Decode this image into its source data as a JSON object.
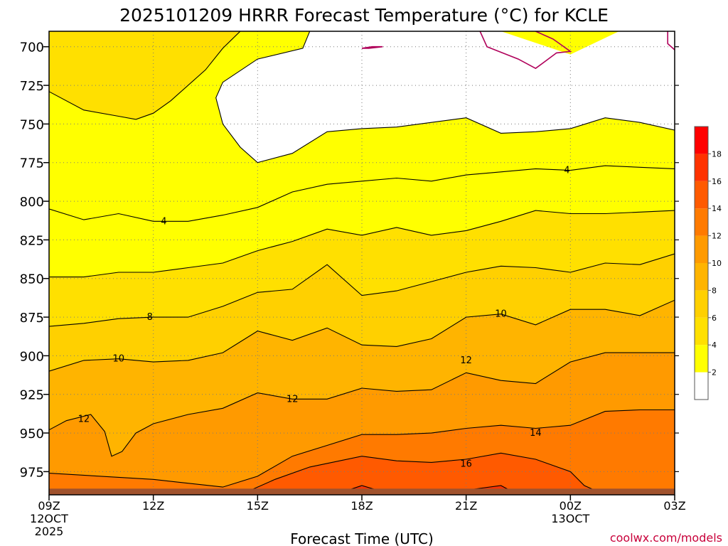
{
  "chart_data": {
    "type": "contour",
    "title": "2025101209 HRRR Forecast Temperature (°C) for KCLE",
    "xlabel": "Forecast Time (UTC)",
    "ylabel": "",
    "x": {
      "range": [
        0,
        18
      ],
      "ticks": [
        {
          "value": 0,
          "label": "09Z",
          "sub1": "12OCT",
          "sub2": "2025"
        },
        {
          "value": 3,
          "label": "12Z",
          "sub1": "",
          "sub2": ""
        },
        {
          "value": 6,
          "label": "15Z",
          "sub1": "",
          "sub2": ""
        },
        {
          "value": 9,
          "label": "18Z",
          "sub1": "",
          "sub2": ""
        },
        {
          "value": 12,
          "label": "21Z",
          "sub1": "",
          "sub2": ""
        },
        {
          "value": 15,
          "label": "00Z",
          "sub1": "13OCT",
          "sub2": ""
        },
        {
          "value": 18,
          "label": "03Z",
          "sub1": "",
          "sub2": ""
        }
      ]
    },
    "y": {
      "range": [
        690,
        990
      ],
      "inverted": true,
      "ticks": [
        700,
        725,
        750,
        775,
        800,
        825,
        850,
        875,
        900,
        925,
        950,
        975
      ]
    },
    "surface_pressure": 986,
    "grid": true,
    "colorbar": {
      "levels": [
        2,
        4,
        6,
        8,
        10,
        12,
        14,
        16,
        18,
        20
      ],
      "labels": [
        "2",
        "4",
        "6",
        "8",
        "10",
        "12",
        "14",
        "16",
        "18"
      ],
      "colors": [
        "#ffffff",
        "#ffff00",
        "#ffe000",
        "#ffd000",
        "#ffb400",
        "#ff9a00",
        "#ff7a00",
        "#ff5a00",
        "#ff3200",
        "#ff0000"
      ],
      "placement": "right"
    },
    "contour_labels": [
      {
        "value": "4",
        "x": 3.3,
        "y": 813
      },
      {
        "value": "4",
        "x": 14.9,
        "y": 780
      },
      {
        "value": "8",
        "x": 2.9,
        "y": 875
      },
      {
        "value": "10",
        "x": 2.0,
        "y": 902
      },
      {
        "value": "10",
        "x": 13.0,
        "y": 873
      },
      {
        "value": "12",
        "x": 1.0,
        "y": 941
      },
      {
        "value": "12",
        "x": 7.0,
        "y": 928
      },
      {
        "value": "12",
        "x": 12.0,
        "y": 903
      },
      {
        "value": "14",
        "x": 14.0,
        "y": 950
      },
      {
        "value": "16",
        "x": 12.0,
        "y": 970
      }
    ],
    "contours": [
      {
        "level": 2,
        "closed": true,
        "points": [
          [
            0,
            690
          ],
          [
            7.5,
            690
          ],
          [
            7.3,
            701
          ],
          [
            6.0,
            708
          ],
          [
            5.0,
            723
          ],
          [
            4.8,
            733
          ],
          [
            5.0,
            750
          ],
          [
            5.5,
            765
          ],
          [
            6.0,
            775
          ],
          [
            7.0,
            769
          ],
          [
            8.0,
            755
          ],
          [
            9.0,
            753
          ],
          [
            10.0,
            752
          ],
          [
            11.0,
            749
          ],
          [
            12.0,
            746
          ],
          [
            13.0,
            756
          ],
          [
            14.0,
            755
          ],
          [
            15.0,
            753
          ],
          [
            16.0,
            746
          ],
          [
            17.0,
            749
          ],
          [
            18.0,
            754
          ],
          [
            18,
            690
          ],
          [
            16.4,
            690
          ],
          [
            15.0,
            705
          ],
          [
            13.0,
            690
          ],
          [
            7.5,
            690
          ]
        ]
      },
      {
        "level": 4,
        "closed": true,
        "points": [
          [
            0,
            690
          ],
          [
            0,
            729
          ],
          [
            1.0,
            741
          ],
          [
            2.0,
            745
          ],
          [
            2.5,
            747
          ],
          [
            3.0,
            743
          ],
          [
            3.5,
            735
          ],
          [
            4.5,
            715
          ],
          [
            5.0,
            701
          ],
          [
            5.5,
            690
          ]
        ]
      },
      {
        "level": 4,
        "closed": true,
        "points": [
          [
            0,
            805
          ],
          [
            1.0,
            812
          ],
          [
            2.0,
            808
          ],
          [
            3.0,
            813
          ],
          [
            4.0,
            813
          ],
          [
            5.0,
            809
          ],
          [
            6.0,
            804
          ],
          [
            7.0,
            794
          ],
          [
            8.0,
            789
          ],
          [
            9.0,
            787
          ],
          [
            10.0,
            785
          ],
          [
            11.0,
            787
          ],
          [
            12.0,
            783
          ],
          [
            13.0,
            781
          ],
          [
            14.0,
            779
          ],
          [
            15.0,
            780
          ],
          [
            16.0,
            777
          ],
          [
            17.0,
            778
          ],
          [
            18.0,
            779
          ],
          [
            18,
            990
          ],
          [
            0,
            990
          ]
        ]
      },
      {
        "level": 6,
        "closed": true,
        "points": [
          [
            0,
            849
          ],
          [
            1.0,
            849
          ],
          [
            2.0,
            846
          ],
          [
            3.0,
            846
          ],
          [
            4.0,
            843
          ],
          [
            5.0,
            840
          ],
          [
            6.0,
            832
          ],
          [
            7.0,
            826
          ],
          [
            8.0,
            818
          ],
          [
            9.0,
            822
          ],
          [
            10.0,
            817
          ],
          [
            11.0,
            822
          ],
          [
            12.0,
            819
          ],
          [
            13.0,
            813
          ],
          [
            14.0,
            806
          ],
          [
            15.0,
            808
          ],
          [
            16.0,
            808
          ],
          [
            17.0,
            807
          ],
          [
            18.0,
            806
          ],
          [
            18,
            990
          ],
          [
            0,
            990
          ]
        ]
      },
      {
        "level": 8,
        "closed": true,
        "points": [
          [
            0,
            881
          ],
          [
            1.0,
            879
          ],
          [
            2.0,
            876
          ],
          [
            3.0,
            875
          ],
          [
            4.0,
            875
          ],
          [
            5.0,
            868
          ],
          [
            6.0,
            859
          ],
          [
            7.0,
            857
          ],
          [
            8.0,
            841
          ],
          [
            9.0,
            861
          ],
          [
            10.0,
            858
          ],
          [
            11.0,
            852
          ],
          [
            12.0,
            846
          ],
          [
            13.0,
            842
          ],
          [
            14.0,
            843
          ],
          [
            15.0,
            846
          ],
          [
            16.0,
            840
          ],
          [
            17.0,
            841
          ],
          [
            18.0,
            834
          ],
          [
            18,
            990
          ],
          [
            0,
            990
          ]
        ]
      },
      {
        "level": 10,
        "closed": true,
        "points": [
          [
            0,
            910
          ],
          [
            1.0,
            903
          ],
          [
            2.0,
            902
          ],
          [
            3.0,
            904
          ],
          [
            4.0,
            903
          ],
          [
            5.0,
            898
          ],
          [
            6.0,
            884
          ],
          [
            7.0,
            890
          ],
          [
            8.0,
            882
          ],
          [
            9.0,
            893
          ],
          [
            10.0,
            894
          ],
          [
            11.0,
            889
          ],
          [
            12.0,
            875
          ],
          [
            13.0,
            873
          ],
          [
            14.0,
            880
          ],
          [
            15.0,
            870
          ],
          [
            16.0,
            870
          ],
          [
            17.0,
            874
          ],
          [
            18.0,
            864
          ],
          [
            18,
            990
          ],
          [
            0,
            990
          ]
        ]
      },
      {
        "level": 12,
        "closed": true,
        "points": [
          [
            0,
            948
          ],
          [
            0.5,
            942
          ],
          [
            1.2,
            938
          ],
          [
            1.6,
            949
          ],
          [
            1.8,
            965
          ],
          [
            2.1,
            962
          ],
          [
            2.5,
            950
          ],
          [
            3.0,
            944
          ],
          [
            4.0,
            938
          ],
          [
            5.0,
            934
          ],
          [
            6.0,
            924
          ],
          [
            7.0,
            928
          ],
          [
            8.0,
            928
          ],
          [
            9.0,
            921
          ],
          [
            10.0,
            923
          ],
          [
            11.0,
            922
          ],
          [
            12.0,
            911
          ],
          [
            13.0,
            916
          ],
          [
            14.0,
            918
          ],
          [
            15.0,
            904
          ],
          [
            16.0,
            898
          ],
          [
            17.0,
            898
          ],
          [
            18.0,
            898
          ],
          [
            18,
            990
          ],
          [
            0,
            990
          ]
        ]
      },
      {
        "level": 14,
        "closed": true,
        "points": [
          [
            0,
            976
          ],
          [
            3.0,
            980
          ],
          [
            5.0,
            985
          ],
          [
            6.0,
            978
          ],
          [
            7.0,
            965
          ],
          [
            8.0,
            958
          ],
          [
            9.0,
            951
          ],
          [
            10.0,
            951
          ],
          [
            11.0,
            950
          ],
          [
            12.0,
            947
          ],
          [
            13.0,
            945
          ],
          [
            14.0,
            947
          ],
          [
            15.0,
            945
          ],
          [
            16.0,
            936
          ],
          [
            17.0,
            935
          ],
          [
            18.0,
            935
          ],
          [
            18,
            990
          ],
          [
            0,
            990
          ]
        ]
      },
      {
        "level": 16,
        "closed": true,
        "points": [
          [
            5.5,
            990
          ],
          [
            6.5,
            980
          ],
          [
            7.5,
            972
          ],
          [
            9.0,
            965
          ],
          [
            10.0,
            968
          ],
          [
            11.0,
            969
          ],
          [
            12.0,
            967
          ],
          [
            13.0,
            963
          ],
          [
            14.0,
            967
          ],
          [
            15.0,
            975
          ],
          [
            15.4,
            984
          ],
          [
            16.0,
            990
          ]
        ]
      },
      {
        "level": 18,
        "closed": true,
        "points": [
          [
            8.2,
            990
          ],
          [
            9.0,
            984
          ],
          [
            9.6,
            988
          ],
          [
            11.0,
            988
          ],
          [
            12.0,
            987
          ],
          [
            13.0,
            984
          ],
          [
            13.5,
            990
          ]
        ]
      }
    ]
  },
  "credit": "coolwx.com/models"
}
